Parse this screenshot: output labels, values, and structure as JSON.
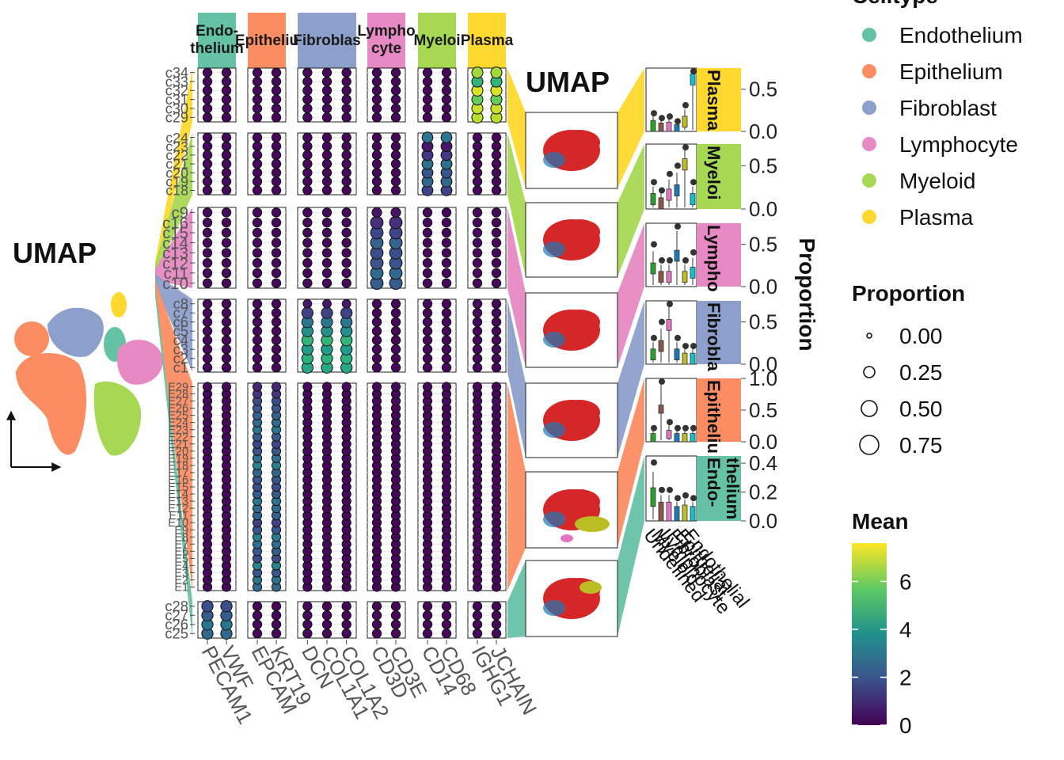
{
  "chart_data": {
    "type": "dotplot",
    "left_panel": {
      "title": "UMAP"
    },
    "mid_panel": {
      "title": "UMAP"
    },
    "celltypes": [
      {
        "name": "Endothelium",
        "short": "Endothelium",
        "strip_lines": [
          "Endo-",
          "thelium"
        ],
        "color": "#66C2A5"
      },
      {
        "name": "Epithelium",
        "short": "Epithelium",
        "strip_lines": [
          "Epitheliu"
        ],
        "color": "#FC8D62"
      },
      {
        "name": "Fibroblast",
        "short": "Fibroblast",
        "strip_lines": [
          "Fibroblas"
        ],
        "color": "#8DA0CB"
      },
      {
        "name": "Lymphocyte",
        "short": "Lymphocyte",
        "strip_lines": [
          "Lympho",
          "cyte"
        ],
        "color": "#E78AC3"
      },
      {
        "name": "Myeloid",
        "short": "Myeloid",
        "strip_lines": [
          "Myeloi"
        ],
        "color": "#A6D854"
      },
      {
        "name": "Plasma",
        "short": "Plasma",
        "strip_lines": [
          "Plasma"
        ],
        "color": "#FFD92F"
      }
    ],
    "genes": [
      "PECAM1",
      "VWF",
      "EPCAM",
      "KRT19",
      "DCN",
      "COL1A1",
      "COL1A2",
      "CD3D",
      "CD3E",
      "CD14",
      "CD68",
      "IGHG1",
      "JCHAIN"
    ],
    "gene_groups": [
      {
        "celltype": "Endothelium",
        "genes": [
          "PECAM1",
          "VWF"
        ]
      },
      {
        "celltype": "Epithelium",
        "genes": [
          "EPCAM",
          "KRT19"
        ]
      },
      {
        "celltype": "Fibroblast",
        "genes": [
          "DCN",
          "COL1A1",
          "COL1A2"
        ]
      },
      {
        "celltype": "Lymphocyte",
        "genes": [
          "CD3D",
          "CD3E"
        ]
      },
      {
        "celltype": "Myeloid",
        "genes": [
          "CD14",
          "CD68"
        ]
      },
      {
        "celltype": "Plasma",
        "genes": [
          "IGHG1",
          "JCHAIN"
        ]
      }
    ],
    "cluster_rows": [
      {
        "celltype": "Plasma",
        "clusters": [
          "c29",
          "c30",
          "c31",
          "c32",
          "c33",
          "c34"
        ],
        "marker_mean": [
          6.8,
          7.0,
          5.8,
          7.2,
          5.0,
          6.5
        ],
        "marker_prop": [
          0.7,
          0.75,
          0.6,
          0.8,
          0.55,
          0.65
        ],
        "celltype_props": [
          0.05,
          0.02,
          0.03,
          0.0,
          0.1,
          0.6
        ]
      },
      {
        "celltype": "Myeloid",
        "clusters": [
          "c18",
          "c19",
          "c20",
          "c21",
          "c22",
          "c23",
          "c24"
        ],
        "marker_mean": [
          1.5,
          2.5,
          2.0,
          2.8,
          1.2,
          0.5,
          3.0
        ],
        "marker_prop": [
          0.6,
          0.7,
          0.65,
          0.7,
          0.5,
          0.3,
          0.2
        ],
        "celltype_props": [
          0.1,
          0.05,
          0.15,
          0.2,
          0.5,
          0.1
        ]
      },
      {
        "celltype": "Lymphocyte",
        "clusters": [
          "c10",
          "c11",
          "c12",
          "c13",
          "c14",
          "c15",
          "c16",
          "c9"
        ],
        "marker_mean": [
          2.2,
          2.5,
          2.0,
          1.8,
          2.4,
          1.6,
          1.0,
          0.4
        ],
        "marker_prop": [
          0.6,
          0.65,
          0.6,
          0.55,
          0.65,
          0.5,
          0.3,
          0.15
        ],
        "celltype_props": [
          0.2,
          0.1,
          0.1,
          0.35,
          0.1,
          0.15
        ]
      },
      {
        "celltype": "Fibroblast",
        "clusters": [
          "c1",
          "c2",
          "c3",
          "c4",
          "c5",
          "c6",
          "c7",
          "c8"
        ],
        "marker_mean": [
          4.5,
          4.8,
          4.2,
          5.0,
          3.8,
          3.0,
          1.5,
          0.5
        ],
        "marker_prop": [
          0.65,
          0.7,
          0.6,
          0.7,
          0.55,
          0.5,
          0.3,
          0.1
        ],
        "celltype_props": [
          0.1,
          0.2,
          0.45,
          0.1,
          0.05,
          0.05
        ]
      },
      {
        "celltype": "Epithelium",
        "clusters": [
          "E1",
          "E2",
          "E3",
          "E4",
          "E5",
          "E6",
          "E7",
          "E8",
          "E9",
          "E10",
          "E11",
          "E12",
          "E13",
          "E14",
          "E15",
          "E16",
          "E17",
          "E18",
          "E19",
          "E20",
          "E21",
          "E22",
          "E23",
          "E24",
          "E25",
          "E26",
          "E27",
          "E28",
          "E29"
        ],
        "marker_mean": [
          2.5,
          3.0,
          2.0,
          3.5,
          1.8,
          2.2,
          2.8,
          3.2,
          2.0,
          1.5,
          2.4,
          2.6,
          3.0,
          2.2,
          1.8,
          2.0,
          2.5,
          3.4,
          2.8,
          2.0,
          1.6,
          2.2,
          3.0,
          2.6,
          2.4,
          2.0,
          1.8,
          1.2,
          0.8
        ],
        "marker_prop": [
          0.6,
          0.65,
          0.55,
          0.7,
          0.5,
          0.6,
          0.65,
          0.7,
          0.55,
          0.45,
          0.6,
          0.62,
          0.68,
          0.58,
          0.5,
          0.55,
          0.62,
          0.72,
          0.66,
          0.55,
          0.48,
          0.58,
          0.7,
          0.62,
          0.6,
          0.55,
          0.5,
          0.35,
          0.2
        ],
        "celltype_props": [
          0.05,
          0.5,
          0.1,
          0.05,
          0.05,
          0.05
        ]
      },
      {
        "celltype": "Endothelium",
        "clusters": [
          "c25",
          "c26",
          "c27",
          "c28"
        ],
        "marker_mean": [
          2.5,
          3.0,
          2.2,
          1.8
        ],
        "marker_prop": [
          0.65,
          0.7,
          0.6,
          0.55
        ],
        "celltype_props": [
          0.15,
          0.05,
          0.05,
          0.02,
          0.03,
          0.02
        ]
      }
    ],
    "proportion_panels": [
      {
        "celltype": "Plasma",
        "ylim": [
          0,
          0.75
        ],
        "ticks": [
          "0.0",
          "0.5"
        ]
      },
      {
        "celltype": "Myeloid",
        "ylim": [
          0,
          0.75
        ],
        "ticks": [
          "0.0",
          "0.5"
        ]
      },
      {
        "celltype": "Lymphocyte",
        "ylim": [
          0,
          0.75
        ],
        "ticks": [
          "0.0",
          "0.5"
        ]
      },
      {
        "celltype": "Fibroblast",
        "ylim": [
          0,
          0.75
        ],
        "ticks": [
          "0.0",
          "0.5"
        ]
      },
      {
        "celltype": "Epithelium",
        "ylim": [
          0,
          1.0
        ],
        "ticks": [
          "0.0",
          "0.5",
          "1.0"
        ]
      },
      {
        "celltype": "Endothelium",
        "ylim": [
          0,
          0.45
        ],
        "ticks": [
          "0.0",
          "0.2",
          "0.4"
        ]
      }
    ],
    "prop_strip_labels": [
      "Plasma",
      "Myeloi",
      "Lympho",
      "Fibrobla",
      "Epitheliu",
      "Endo-\nthelium"
    ],
    "prop_y_title": "Proportion",
    "prop_x_labels": [
      "Undefined",
      "Myeloid",
      "Lymphocyte",
      "Fibroblast",
      "Epithelial",
      "Endothelial"
    ],
    "legends": {
      "celltype": {
        "title": "Celltype"
      },
      "proportion": {
        "title": "Proportion",
        "values": [
          "0.00",
          "0.25",
          "0.50",
          "0.75"
        ]
      },
      "mean": {
        "title": "Mean",
        "ticks": [
          "0",
          "2",
          "4",
          "6"
        ],
        "range": [
          0,
          7.6
        ]
      }
    }
  }
}
